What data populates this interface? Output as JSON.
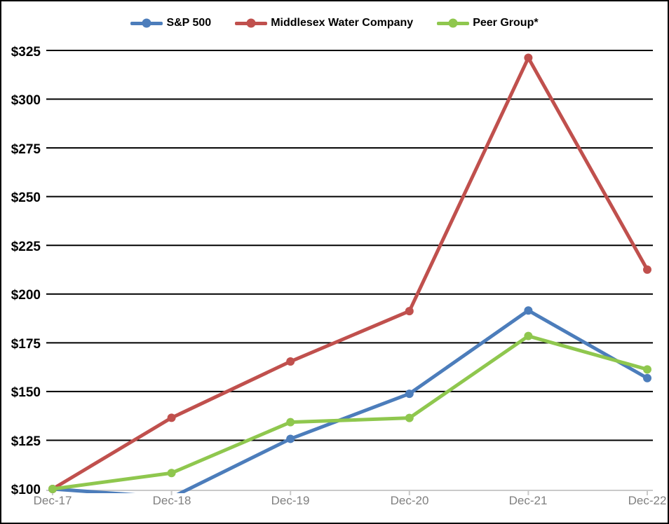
{
  "colors": {
    "background": "#FFFFFF",
    "border": "#000000",
    "gridline": "#000000",
    "axis_line": "#C9C9C9",
    "x_label": "#7F7F7F",
    "y_label": "#000000",
    "series_blue": "#4C7DBB",
    "series_red": "#C0504D",
    "series_green": "#8FC74E"
  },
  "chart_data": {
    "type": "line",
    "title": "",
    "xlabel": "",
    "ylabel": "",
    "legend_position": "top",
    "grid": true,
    "categories": [
      "Dec-17",
      "Dec-18",
      "Dec-19",
      "Dec-20",
      "Dec-21",
      "Dec-22"
    ],
    "series": [
      {
        "name": "S&P 500",
        "color": "#4C7DBB",
        "values": [
          100.0,
          95.62,
          125.72,
          148.85,
          191.58,
          156.88
        ]
      },
      {
        "name": "Middlesex Water Company",
        "color": "#C0504D",
        "values": [
          100.0,
          136.52,
          165.4,
          191.26,
          321.21,
          212.55
        ]
      },
      {
        "name": "Peer Group*",
        "color": "#8FC74E",
        "values": [
          100.0,
          108.19,
          134.26,
          136.42,
          178.47,
          161.34
        ]
      }
    ],
    "y_axis": {
      "min": 100,
      "max": 325,
      "step": 25,
      "tick_labels": [
        "$100",
        "$125",
        "$150",
        "$175",
        "$200",
        "$225",
        "$250",
        "$275",
        "$300",
        "$325"
      ]
    },
    "x_axis": {
      "tick_labels": [
        "Dec-17",
        "Dec-18",
        "Dec-19",
        "Dec-20",
        "Dec-21",
        "Dec-22"
      ]
    }
  }
}
